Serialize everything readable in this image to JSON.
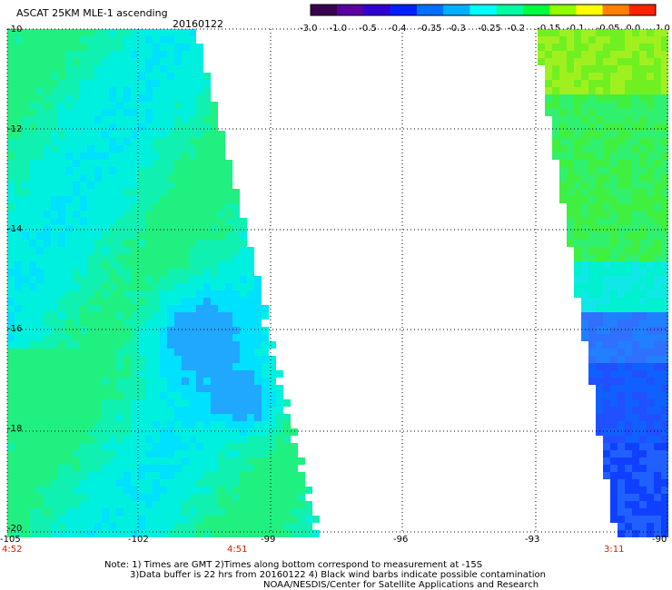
{
  "header": {
    "product": "ASCAT 25KM MLE-1 ascending",
    "date": "20160122"
  },
  "colorbar": {
    "ticks": [
      "-3.0",
      "-1.0",
      "-0.5",
      "-0.4",
      "-0.35",
      "-0.3",
      "-0.25",
      "-0.2",
      "-0.15",
      "-0.1",
      "-0.05",
      "0.0",
      "1.0"
    ],
    "colors": [
      "#3a0050",
      "#5a00a0",
      "#3000d0",
      "#0020ff",
      "#0070ff",
      "#00b0ff",
      "#00ffff",
      "#00ffa0",
      "#00ff40",
      "#90ff00",
      "#ffff00",
      "#ff8000",
      "#ff2000"
    ]
  },
  "map": {
    "lat_labels": [
      "-10",
      "-12",
      "-14",
      "-16",
      "-18",
      "-20"
    ],
    "lon_labels": [
      "-105",
      "-102",
      "-99",
      "-96",
      "-93",
      "-90"
    ],
    "time_labels": [
      "4:52",
      "4:51",
      "3:11"
    ]
  },
  "notes": {
    "line1": "Note: 1) Times are GMT 2)Times along bottom correspond to measurement at -15S",
    "line2": "3)Data buffer is 22 hrs from 20160122 4) Black wind barbs indicate possible contamination",
    "line3": "NOAA/NESDIS/Center for Satellite Applications and Research"
  }
}
